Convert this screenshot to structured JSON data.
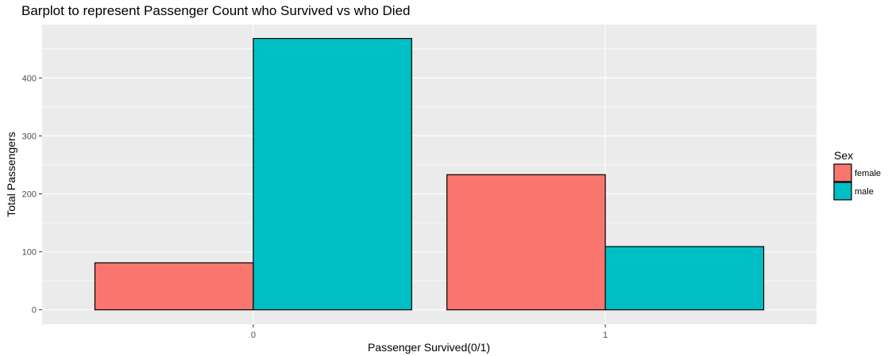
{
  "chart_data": {
    "type": "bar",
    "title": "Barplot to represent Passenger Count who Survived vs who Died",
    "xlabel": "Passenger Survived(0/1)",
    "ylabel": "Total Passengers",
    "categories": [
      "0",
      "1"
    ],
    "series": [
      {
        "name": "female",
        "values": [
          81,
          233
        ],
        "color": "#F8766D"
      },
      {
        "name": "male",
        "values": [
          468,
          109
        ],
        "color": "#00BFC4"
      }
    ],
    "ylim": [
      -25,
      492
    ],
    "yticks": [
      0,
      100,
      200,
      300,
      400
    ],
    "ytick_labels": [
      "0",
      "100",
      "200",
      "300",
      "400"
    ],
    "grid": true,
    "legend": {
      "title": "Sex",
      "position": "right"
    },
    "panel_color": "#EBEBEB",
    "grid_color": "#FFFFFF"
  }
}
